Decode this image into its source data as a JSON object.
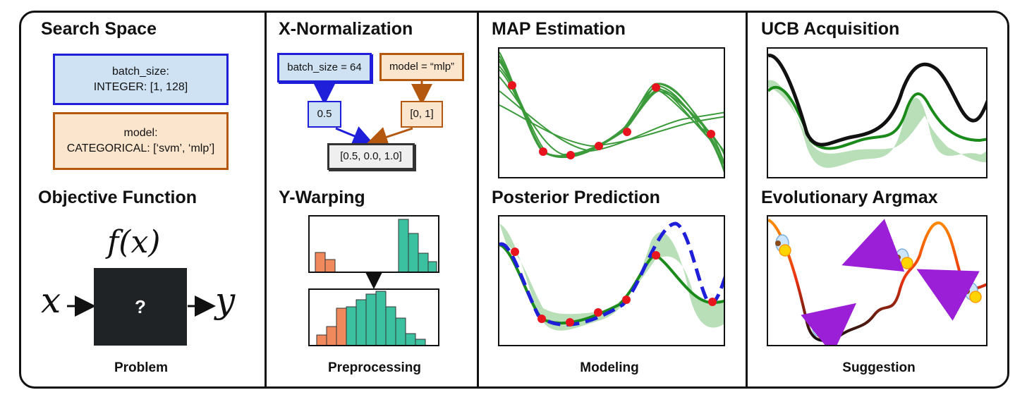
{
  "columns": [
    {
      "caption": "Problem",
      "sections": [
        {
          "title": "Search Space"
        },
        {
          "title": "Objective Function"
        }
      ],
      "search_space": {
        "param1": "batch_size:\nINTEGER: [1, 128]",
        "param2": "model:\nCATEGORICAL: [‘svm’, ‘mlp’]"
      },
      "objective": {
        "function_label": "f(x)",
        "input_label": "x",
        "output_label": "y",
        "box_label": "?"
      }
    },
    {
      "caption": "Preprocessing",
      "sections": [
        {
          "title": "X-Normalization"
        },
        {
          "title": "Y-Warping"
        }
      ],
      "x_norm": {
        "input1": "batch_size = 64",
        "input2": "model = “mlp”",
        "output1": "0.5",
        "output2": "[0, 1]",
        "combined": "[0.5, 0.0, 1.0]"
      }
    },
    {
      "caption": "Modeling",
      "sections": [
        {
          "title": "MAP Estimation"
        },
        {
          "title": "Posterior Prediction"
        }
      ]
    },
    {
      "caption": "Suggestion",
      "sections": [
        {
          "title": "UCB Acquisition"
        },
        {
          "title": "Evolutionary Argmax"
        }
      ]
    }
  ],
  "colors": {
    "blue_border": "#1f1fd9",
    "blue_fill": "#cfe2f3",
    "orange_border": "#b4570f",
    "orange_fill": "#fce5cd",
    "green_line": "#1a8a1a",
    "green_band": "#b9dfb9",
    "red_point": "#e8141e",
    "dashed_blue": "#1f1fd9",
    "teal_bar": "#3cc1a0",
    "salmon_bar": "#f08a5d",
    "purple_arrow": "#9b1fd6"
  },
  "icons": [
    "firefly-icon",
    "arrow-icon"
  ]
}
